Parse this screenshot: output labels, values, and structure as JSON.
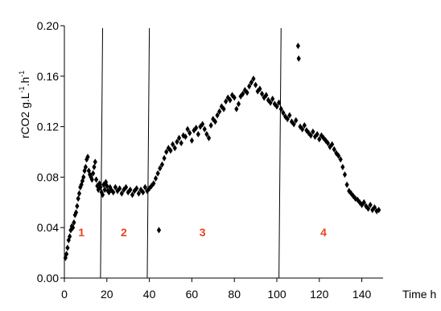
{
  "chart_data": {
    "type": "scatter",
    "xlabel": "Time h",
    "ylabel": {
      "base": "rCO2 g.L",
      "sup1": "-1",
      "mid": ".h",
      "sup2": "-1"
    },
    "xlim": [
      0,
      150
    ],
    "ylim": [
      0.0,
      0.2
    ],
    "x_ticks": [
      0,
      20,
      40,
      60,
      80,
      100,
      120,
      140
    ],
    "x_tick_labels": [
      "0",
      "20",
      "40",
      "60",
      "80",
      "100",
      "120",
      "140"
    ],
    "y_ticks": [
      0.0,
      0.04,
      0.08,
      0.12,
      0.16,
      0.2
    ],
    "y_tick_labels": [
      "0.00",
      "0.04",
      "0.08",
      "0.12",
      "0.16",
      "0.20"
    ],
    "grid": false,
    "marker": "diamond",
    "marker_color": "#000000",
    "phase_boundaries": [
      {
        "x_bottom": 17,
        "x_top": 18
      },
      {
        "x_bottom": 39,
        "x_top": 40
      },
      {
        "x_bottom": 101,
        "x_top": 102
      }
    ],
    "phase_labels": [
      {
        "text": "1",
        "x": 8,
        "y": 0.033
      },
      {
        "text": "2",
        "x": 28,
        "y": 0.033
      },
      {
        "text": "3",
        "x": 65,
        "y": 0.033
      },
      {
        "text": "4",
        "x": 122,
        "y": 0.033
      }
    ],
    "phase_label_color": "#e8421e",
    "series": [
      {
        "points": [
          [
            0.5,
            0.016
          ],
          [
            1.0,
            0.019
          ],
          [
            1.5,
            0.024
          ],
          [
            2.0,
            0.03
          ],
          [
            2.5,
            0.033
          ],
          [
            3.0,
            0.038
          ],
          [
            3.5,
            0.041
          ],
          [
            4.0,
            0.04
          ],
          [
            4.5,
            0.044
          ],
          [
            5.0,
            0.05
          ],
          [
            5.5,
            0.052
          ],
          [
            6.0,
            0.057
          ],
          [
            6.5,
            0.063
          ],
          [
            7.0,
            0.067
          ],
          [
            7.5,
            0.072
          ],
          [
            8.0,
            0.074
          ],
          [
            8.5,
            0.077
          ],
          [
            9.0,
            0.08
          ],
          [
            9.5,
            0.085
          ],
          [
            10.0,
            0.088
          ],
          [
            10.5,
            0.094
          ],
          [
            11.0,
            0.096
          ],
          [
            11.5,
            0.085
          ],
          [
            12.0,
            0.082
          ],
          [
            12.5,
            0.08
          ],
          [
            13.0,
            0.078
          ],
          [
            13.5,
            0.083
          ],
          [
            14.0,
            0.088
          ],
          [
            14.5,
            0.092
          ],
          [
            15.0,
            0.078
          ],
          [
            15.5,
            0.073
          ],
          [
            16.0,
            0.07
          ],
          [
            16.5,
            0.075
          ],
          [
            17.0,
            0.072
          ],
          [
            17.5,
            0.068
          ],
          [
            18.0,
            0.066
          ],
          [
            18.5,
            0.074
          ],
          [
            19.0,
            0.07
          ],
          [
            19.5,
            0.076
          ],
          [
            20.0,
            0.073
          ],
          [
            20.5,
            0.069
          ],
          [
            21.0,
            0.068
          ],
          [
            21.5,
            0.072
          ],
          [
            22.0,
            0.07
          ],
          [
            23.0,
            0.068
          ],
          [
            24.0,
            0.072
          ],
          [
            25.0,
            0.069
          ],
          [
            26.0,
            0.071
          ],
          [
            27.0,
            0.067
          ],
          [
            28.0,
            0.07
          ],
          [
            29.0,
            0.072
          ],
          [
            30.0,
            0.068
          ],
          [
            31.0,
            0.07
          ],
          [
            32.0,
            0.066
          ],
          [
            33.0,
            0.069
          ],
          [
            34.0,
            0.071
          ],
          [
            35.0,
            0.067
          ],
          [
            36.0,
            0.07
          ],
          [
            37.0,
            0.068
          ],
          [
            38.0,
            0.072
          ],
          [
            39.0,
            0.069
          ],
          [
            40.0,
            0.071
          ],
          [
            41.0,
            0.073
          ],
          [
            42.0,
            0.075
          ],
          [
            43.0,
            0.079
          ],
          [
            44.0,
            0.083
          ],
          [
            44.5,
            0.038
          ],
          [
            45.0,
            0.087
          ],
          [
            46.0,
            0.09
          ],
          [
            47.0,
            0.095
          ],
          [
            48.0,
            0.1
          ],
          [
            49.0,
            0.103
          ],
          [
            50.0,
            0.101
          ],
          [
            51.0,
            0.106
          ],
          [
            52.0,
            0.103
          ],
          [
            53.0,
            0.108
          ],
          [
            54.0,
            0.111
          ],
          [
            55.0,
            0.107
          ],
          [
            56.0,
            0.113
          ],
          [
            57.0,
            0.112
          ],
          [
            58.0,
            0.118
          ],
          [
            59.0,
            0.115
          ],
          [
            60.0,
            0.109
          ],
          [
            61.0,
            0.117
          ],
          [
            62.0,
            0.119
          ],
          [
            63.0,
            0.114
          ],
          [
            64.0,
            0.12
          ],
          [
            65.0,
            0.122
          ],
          [
            66.0,
            0.118
          ],
          [
            67.0,
            0.114
          ],
          [
            68.0,
            0.111
          ],
          [
            69.0,
            0.121
          ],
          [
            70.0,
            0.126
          ],
          [
            71.0,
            0.124
          ],
          [
            72.0,
            0.129
          ],
          [
            73.0,
            0.132
          ],
          [
            74.0,
            0.136
          ],
          [
            75.0,
            0.134
          ],
          [
            76.0,
            0.14
          ],
          [
            77.0,
            0.143
          ],
          [
            78.0,
            0.141
          ],
          [
            79.0,
            0.145
          ],
          [
            80.0,
            0.143
          ],
          [
            81.0,
            0.134
          ],
          [
            82.0,
            0.138
          ],
          [
            83.0,
            0.144
          ],
          [
            84.0,
            0.146
          ],
          [
            85.0,
            0.149
          ],
          [
            86.0,
            0.147
          ],
          [
            87.0,
            0.152
          ],
          [
            88.0,
            0.155
          ],
          [
            89.0,
            0.158
          ],
          [
            90.0,
            0.153
          ],
          [
            91.0,
            0.148
          ],
          [
            92.0,
            0.15
          ],
          [
            93.0,
            0.146
          ],
          [
            94.0,
            0.143
          ],
          [
            95.0,
            0.145
          ],
          [
            96.0,
            0.141
          ],
          [
            97.0,
            0.139
          ],
          [
            98.0,
            0.142
          ],
          [
            99.0,
            0.138
          ],
          [
            100.0,
            0.136
          ],
          [
            101.0,
            0.139
          ],
          [
            102.0,
            0.134
          ],
          [
            103.0,
            0.131
          ],
          [
            104.0,
            0.128
          ],
          [
            105.0,
            0.126
          ],
          [
            106.0,
            0.129
          ],
          [
            107.0,
            0.124
          ],
          [
            108.0,
            0.122
          ],
          [
            109.0,
            0.125
          ],
          [
            110.0,
            0.184
          ],
          [
            110.3,
            0.174
          ],
          [
            111.0,
            0.12
          ],
          [
            112.0,
            0.118
          ],
          [
            113.0,
            0.121
          ],
          [
            114.0,
            0.117
          ],
          [
            115.0,
            0.115
          ],
          [
            116.0,
            0.113
          ],
          [
            117.0,
            0.116
          ],
          [
            118.0,
            0.112
          ],
          [
            119.0,
            0.114
          ],
          [
            120.0,
            0.11
          ],
          [
            121.0,
            0.113
          ],
          [
            122.0,
            0.111
          ],
          [
            123.0,
            0.109
          ],
          [
            124.0,
            0.107
          ],
          [
            125.0,
            0.104
          ],
          [
            126.0,
            0.106
          ],
          [
            127.0,
            0.102
          ],
          [
            128.0,
            0.099
          ],
          [
            129.0,
            0.097
          ],
          [
            130.0,
            0.094
          ],
          [
            131.0,
            0.088
          ],
          [
            132.0,
            0.082
          ],
          [
            133.0,
            0.074
          ],
          [
            134.0,
            0.069
          ],
          [
            135.0,
            0.067
          ],
          [
            136.0,
            0.065
          ],
          [
            137.0,
            0.063
          ],
          [
            138.0,
            0.062
          ],
          [
            139.0,
            0.06
          ],
          [
            140.0,
            0.058
          ],
          [
            141.0,
            0.06
          ],
          [
            142.0,
            0.057
          ],
          [
            143.0,
            0.055
          ],
          [
            144.0,
            0.058
          ],
          [
            145.0,
            0.054
          ],
          [
            146.0,
            0.056
          ],
          [
            147.0,
            0.053
          ],
          [
            148.0,
            0.054
          ]
        ]
      }
    ]
  }
}
